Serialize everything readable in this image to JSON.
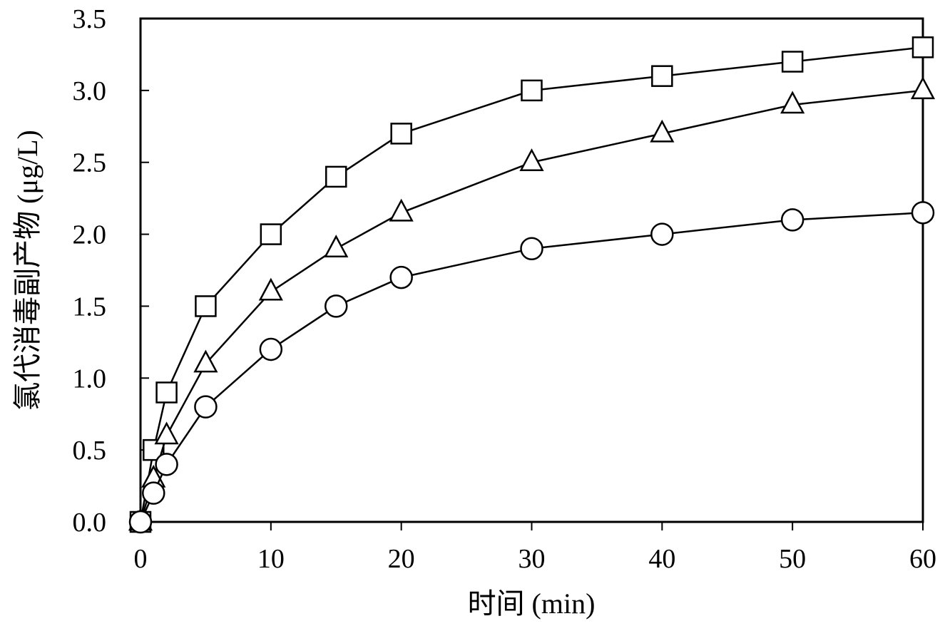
{
  "chart_data": {
    "type": "line",
    "title": "",
    "xlabel": "时间 (min)",
    "ylabel": "氯代消毒副产物 (μg/L)",
    "xlim": [
      0,
      60
    ],
    "ylim": [
      0,
      3.5
    ],
    "x_ticks": [
      "0",
      "10",
      "20",
      "30",
      "40",
      "50",
      "60"
    ],
    "y_ticks": [
      "0.0",
      "0.5",
      "1.0",
      "1.5",
      "2.0",
      "2.5",
      "3.0",
      "3.5"
    ],
    "grid": false,
    "legend": "none",
    "series": [
      {
        "marker": "square",
        "x": [
          0,
          1,
          2,
          5,
          10,
          15,
          20,
          30,
          40,
          50,
          60
        ],
        "values": [
          0,
          0.5,
          0.9,
          1.5,
          2.0,
          2.4,
          2.7,
          3.0,
          3.1,
          3.2,
          3.3
        ]
      },
      {
        "marker": "triangle",
        "x": [
          0,
          1,
          2,
          5,
          10,
          15,
          20,
          30,
          40,
          50,
          60
        ],
        "values": [
          0,
          0.3,
          0.6,
          1.1,
          1.6,
          1.9,
          2.15,
          2.5,
          2.7,
          2.9,
          3.0
        ]
      },
      {
        "marker": "circle",
        "x": [
          0,
          1,
          2,
          5,
          10,
          15,
          20,
          30,
          40,
          50,
          60
        ],
        "values": [
          0,
          0.2,
          0.4,
          0.8,
          1.2,
          1.5,
          1.7,
          1.9,
          2.0,
          2.1,
          2.15
        ]
      }
    ]
  }
}
